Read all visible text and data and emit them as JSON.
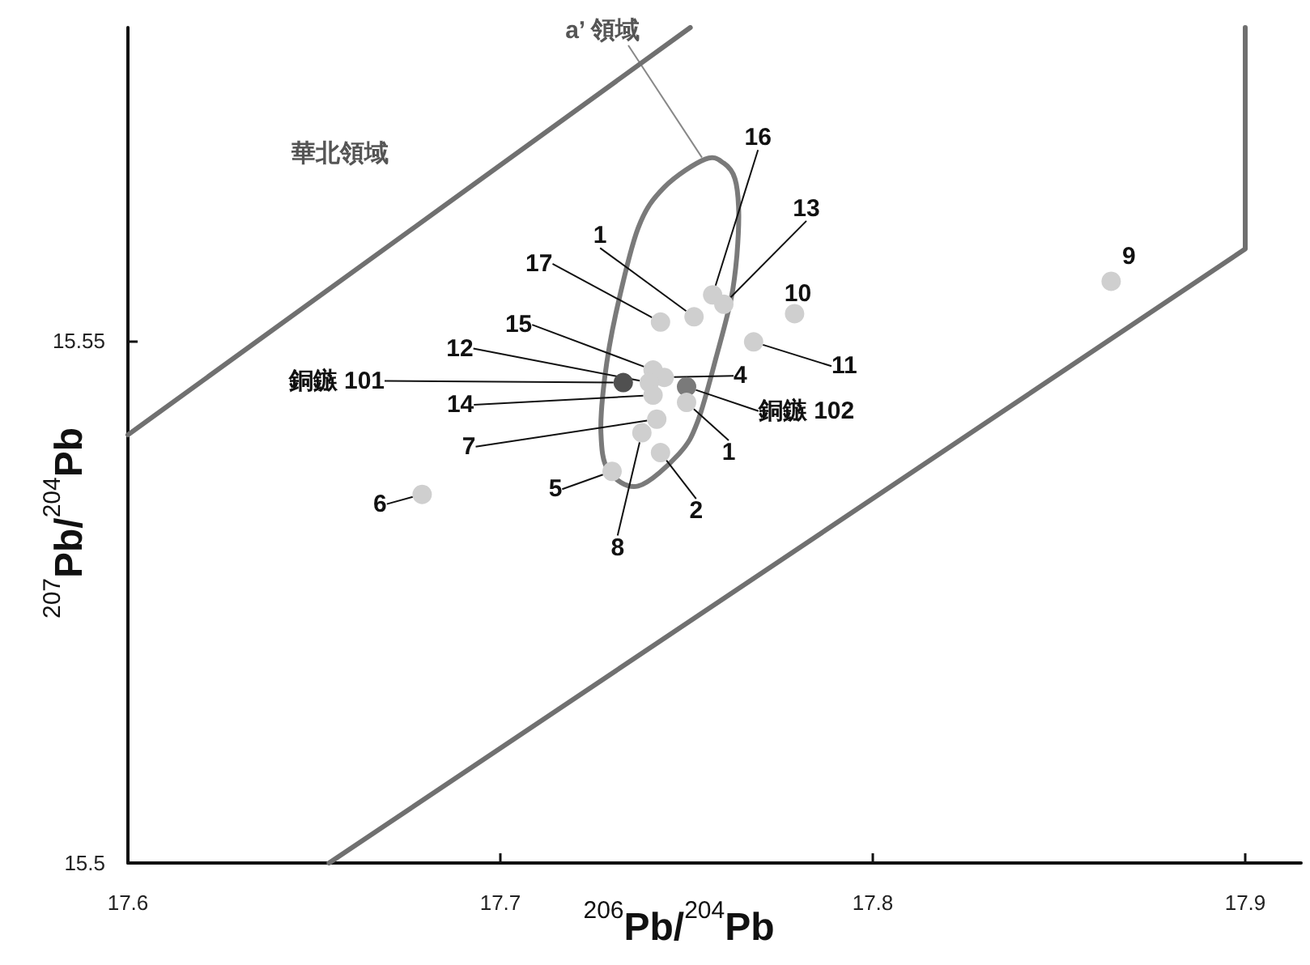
{
  "chart_data": {
    "type": "scatter",
    "xlabel": "$^{206}$Pb/$^{204}$Pb",
    "ylabel": "$^{207}$Pb/$^{204}$Pb",
    "xlim": [
      17.6,
      17.915
    ],
    "ylim": [
      15.5,
      15.58
    ],
    "xticks": [
      17.6,
      17.7,
      17.8,
      17.9
    ],
    "yticks": [
      15.5,
      15.55
    ],
    "marker": "circle",
    "series": [
      {
        "type": "line",
        "color": "#707070",
        "marker": "none",
        "x": [
          17.6,
          17.751
        ],
        "values": [
          15.541,
          15.58
        ]
      },
      {
        "type": "line",
        "color": "#707070",
        "marker": "none",
        "x": [
          17.654,
          17.9,
          17.9
        ],
        "values": [
          15.5,
          15.5588,
          15.58
        ]
      },
      {
        "colors": [
          "#cfcfcf",
          "#cfcfcf",
          "#cfcfcf",
          "#cfcfcf",
          "#cfcfcf",
          "#cfcfcf",
          "#cfcfcf",
          "#cfcfcf",
          "#cfcfcf",
          "#cfcfcf",
          "#cfcfcf",
          "#505050",
          "#cfcfcf",
          "#7a7a7a",
          "#cfcfcf",
          "#cfcfcf",
          "#cfcfcf",
          "#cfcfcf",
          "#cfcfcf"
        ],
        "x": [
          17.864,
          17.679,
          17.779,
          17.768,
          17.757,
          17.76,
          17.752,
          17.743,
          17.741,
          17.744,
          17.74,
          17.733,
          17.741,
          17.75,
          17.75,
          17.742,
          17.738,
          17.743,
          17.73
        ],
        "values": [
          15.5557,
          15.5353,
          15.5526,
          15.5499,
          15.5544,
          15.5535,
          15.5523,
          15.5518,
          15.5472,
          15.5465,
          15.546,
          15.546,
          15.5448,
          15.5456,
          15.5441,
          15.5425,
          15.5412,
          15.5393,
          15.5375
        ]
      }
    ],
    "annotations": [
      "華北領域",
      "a’ 領域",
      {
        "text": "9",
        "x": 17.864,
        "y": 15.5557
      },
      {
        "text": "6",
        "x": 17.679,
        "y": 15.5353
      },
      {
        "text": "10",
        "x": 17.779,
        "y": 15.5526
      },
      {
        "text": "11",
        "x": 17.768,
        "y": 15.5499
      },
      {
        "text": "16",
        "x": 17.757,
        "y": 15.5544
      },
      {
        "text": "13",
        "x": 17.76,
        "y": 15.5535
      },
      {
        "text": "1",
        "x": 17.752,
        "y": 15.5523
      },
      {
        "text": "17",
        "x": 17.743,
        "y": 15.5518
      },
      {
        "text": "15",
        "x": 17.741,
        "y": 15.5472
      },
      {
        "text": "4",
        "x": 17.744,
        "y": 15.5465
      },
      {
        "text": "12",
        "x": 17.74,
        "y": 15.546
      },
      {
        "text": "銅鏃 101",
        "x": 17.733,
        "y": 15.546
      },
      {
        "text": "14",
        "x": 17.741,
        "y": 15.5448
      },
      {
        "text": "銅鏃 102",
        "x": 17.75,
        "y": 15.5456
      },
      {
        "text": "1",
        "x": 17.75,
        "y": 15.5441
      },
      {
        "text": "7",
        "x": 17.742,
        "y": 15.5425
      },
      {
        "text": "8",
        "x": 17.738,
        "y": 15.5412
      },
      {
        "text": "2",
        "x": 17.743,
        "y": 15.5393
      },
      {
        "text": "5",
        "x": 17.73,
        "y": 15.5375
      }
    ]
  }
}
